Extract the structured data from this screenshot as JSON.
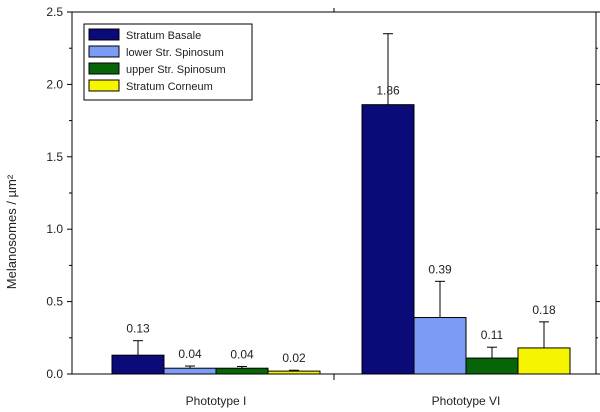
{
  "chart_data": {
    "type": "bar",
    "categories": [
      "Phototype I",
      "Phototype VI"
    ],
    "ylabel": "Melanosomes / µm²",
    "xlabel": "",
    "ylim": [
      0.0,
      2.5
    ],
    "yticks": [
      "0.0",
      "0.5",
      "1.0",
      "1.5",
      "2.0",
      "2.5"
    ],
    "legend_position": "top-left",
    "grid": false,
    "series": [
      {
        "name": "Stratum Basale",
        "color": "#0a0a78",
        "values": [
          0.13,
          1.86
        ],
        "errors": [
          0.1,
          0.49
        ],
        "labels": [
          "0.13",
          "1.86"
        ]
      },
      {
        "name": "lower Str. Spinosum",
        "color": "#7b9cf5",
        "values": [
          0.04,
          0.39
        ],
        "errors": [
          0.015,
          0.25
        ],
        "labels": [
          "0.04",
          "0.39"
        ]
      },
      {
        "name": "upper Str. Spinosum",
        "color": "#086408",
        "values": [
          0.04,
          0.11
        ],
        "errors": [
          0.012,
          0.075
        ],
        "labels": [
          "0.04",
          "0.11"
        ]
      },
      {
        "name": "Stratum Corneum",
        "color": "#f5f500",
        "values": [
          0.02,
          0.18
        ],
        "errors": [
          0.006,
          0.18
        ],
        "labels": [
          "0.02",
          "0.18"
        ]
      }
    ]
  }
}
